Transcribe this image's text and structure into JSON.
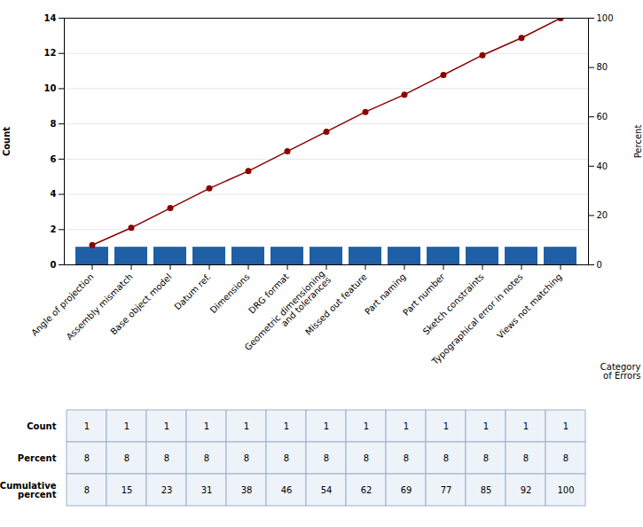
{
  "chart_data": {
    "type": "bar",
    "categories": [
      "Angle of projection",
      "Assembly mismatch",
      "Base object model",
      "Datum ref.",
      "Dimensions",
      "DRG format",
      "Geometric dimensioning\nand tolerances",
      "Missed out feature",
      "Part naming",
      "Part number",
      "Sketch constraints",
      "Typographical error in notes",
      "Views not matching"
    ],
    "series": [
      {
        "type": "bar",
        "color": "#1f5fa6",
        "values": [
          1,
          1,
          1,
          1,
          1,
          1,
          1,
          1,
          1,
          1,
          1,
          1,
          1
        ]
      },
      {
        "type": "line",
        "axis": "y2",
        "color": "#8b0000",
        "marker": "circle",
        "values": [
          8,
          15,
          23,
          31,
          38,
          46,
          54,
          62,
          69,
          77,
          85,
          92,
          100
        ]
      }
    ],
    "xlabel": "Category\nof Errors",
    "ylabel": "Count",
    "y2label": "Percent",
    "ylim": [
      0,
      14
    ],
    "yticks": [
      0,
      2,
      4,
      6,
      8,
      10,
      12,
      14
    ],
    "y2lim": [
      0,
      100
    ],
    "y2ticks": [
      0,
      20,
      40,
      60,
      80,
      100
    ],
    "grid": true,
    "table": {
      "rows": [
        {
          "label": "Count",
          "values": [
            1,
            1,
            1,
            1,
            1,
            1,
            1,
            1,
            1,
            1,
            1,
            1,
            1
          ]
        },
        {
          "label": "Percent",
          "values": [
            8,
            8,
            8,
            8,
            8,
            8,
            8,
            8,
            8,
            8,
            8,
            8,
            8
          ]
        },
        {
          "label": "Cumulative\npercent",
          "values": [
            8,
            15,
            23,
            31,
            38,
            46,
            54,
            62,
            69,
            77,
            85,
            92,
            100
          ]
        }
      ]
    }
  }
}
